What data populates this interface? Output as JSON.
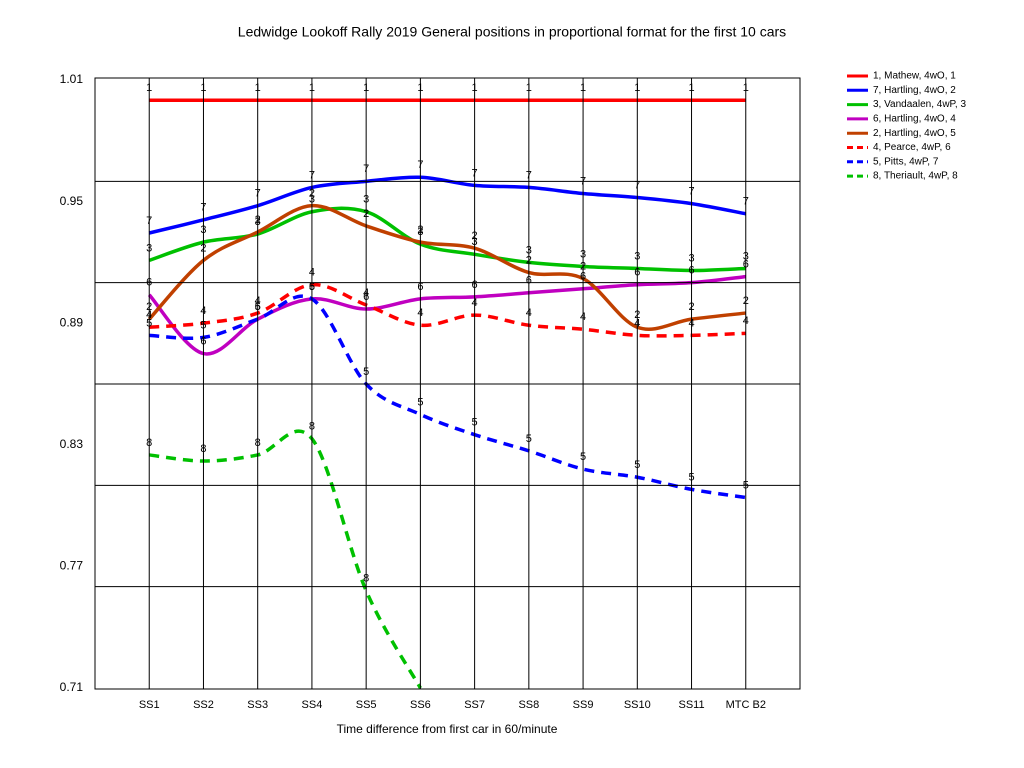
{
  "chart_data": {
    "type": "line",
    "title": "Ledwidge Lookoff Rally 2019  General positions in proportional format for the first 10 cars",
    "xlabel": "Time difference from first car in 60/minute",
    "categories": [
      "SS1",
      "SS2",
      "SS3",
      "SS4",
      "SS5",
      "SS6",
      "SS7",
      "SS8",
      "SS9",
      "SS10",
      "SS11",
      "MTC B2"
    ],
    "ylim": [
      0.71,
      1.01
    ],
    "yticks": [
      0.71,
      0.77,
      0.83,
      0.89,
      0.95,
      1.01
    ],
    "ygrid": [
      0.76,
      0.81,
      0.86,
      0.91,
      0.96
    ],
    "series": [
      {
        "name": "1, Mathew, 4wO, 1",
        "label": "1",
        "color": "#ff0000",
        "dashed": false,
        "values": [
          1.0,
          1.0,
          1.0,
          1.0,
          1.0,
          1.0,
          1.0,
          1.0,
          1.0,
          1.0,
          1.0,
          1.0
        ]
      },
      {
        "name": "7, Hartling, 4wO, 2",
        "label": "7",
        "color": "#0000ff",
        "dashed": false,
        "values": [
          0.9345,
          0.941,
          0.948,
          0.957,
          0.96,
          0.962,
          0.958,
          0.957,
          0.954,
          0.952,
          0.949,
          0.944
        ]
      },
      {
        "name": "3, Vandaalen, 4wP, 3",
        "label": "3",
        "color": "#00c000",
        "dashed": false,
        "values": [
          0.921,
          0.93,
          0.934,
          0.945,
          0.945,
          0.929,
          0.924,
          0.92,
          0.918,
          0.917,
          0.916,
          0.917
        ]
      },
      {
        "name": "6, Hartling, 4wO, 4",
        "label": "6",
        "color": "#c000c0",
        "dashed": false,
        "values": [
          0.904,
          0.875,
          0.892,
          0.902,
          0.897,
          0.902,
          0.903,
          0.905,
          0.907,
          0.909,
          0.91,
          0.913
        ]
      },
      {
        "name": "2, Hartling, 4wO, 5",
        "label": "2",
        "color": "#c04000",
        "dashed": false,
        "values": [
          0.892,
          0.921,
          0.935,
          0.948,
          0.938,
          0.93,
          0.927,
          0.915,
          0.912,
          0.888,
          0.892,
          0.895
        ]
      },
      {
        "name": "4, Pearce, 4wP, 6",
        "label": "4",
        "color": "#ff0000",
        "dashed": true,
        "values": [
          0.888,
          0.89,
          0.895,
          0.909,
          0.899,
          0.889,
          0.894,
          0.889,
          0.887,
          0.884,
          0.884,
          0.885
        ]
      },
      {
        "name": "5, Pitts, 4wP, 7",
        "label": "5",
        "color": "#0000ff",
        "dashed": true,
        "values": [
          0.884,
          0.883,
          0.892,
          0.902,
          0.86,
          0.845,
          0.835,
          0.827,
          0.818,
          0.814,
          0.808,
          0.804
        ]
      },
      {
        "name": "8, Theriault, 4wP, 8",
        "label": "8",
        "color": "#00c000",
        "dashed": true,
        "values": [
          0.825,
          0.822,
          0.825,
          0.833,
          0.758,
          0.71,
          null,
          null,
          null,
          null,
          null,
          null
        ]
      }
    ]
  }
}
